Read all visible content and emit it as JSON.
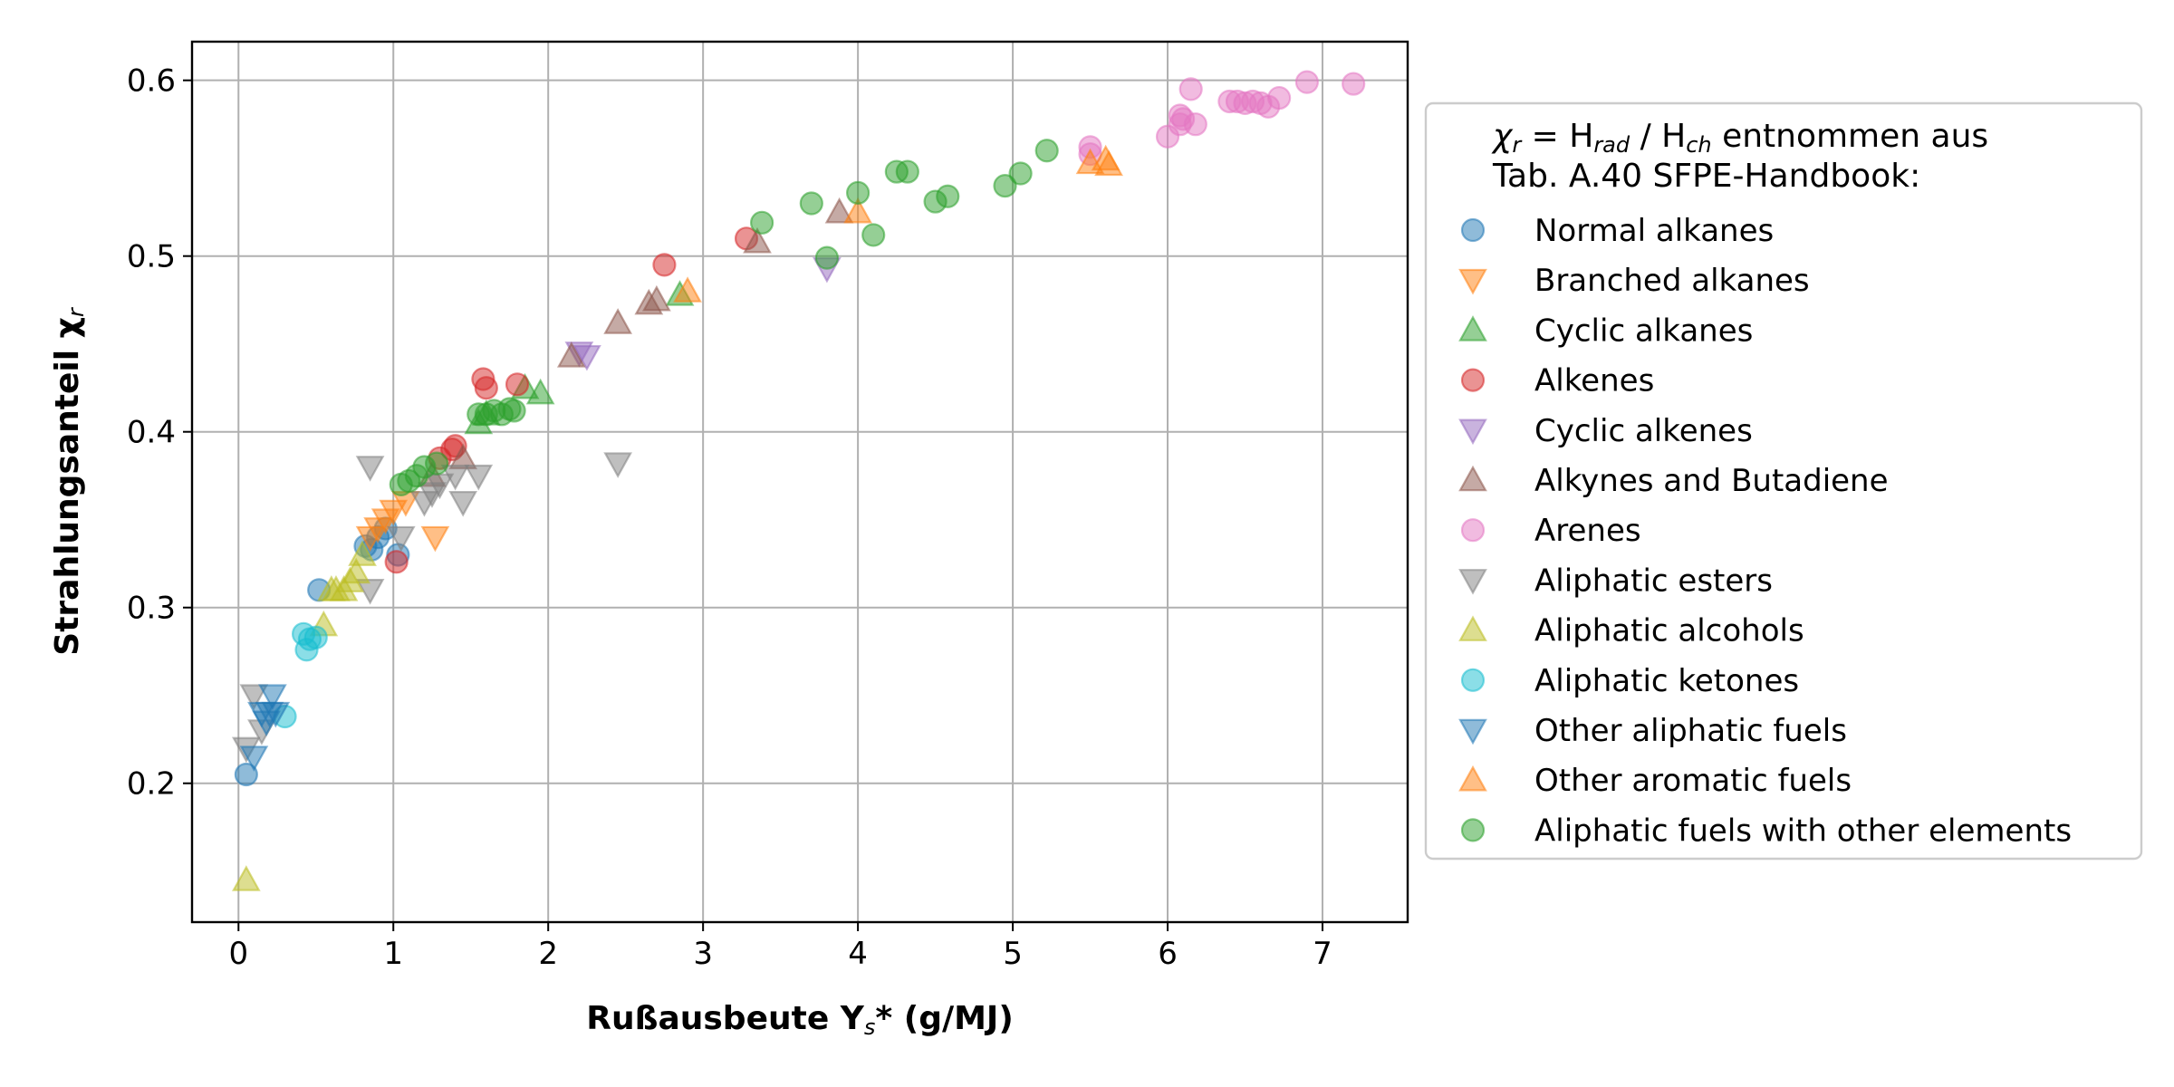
{
  "chart_data": {
    "type": "scatter",
    "xlabel": "Rußausbeute Y",
    "xlabel_sub": "s",
    "xlabel_suffix": "* (g/MJ)",
    "ylabel": "Strahlungsanteil χ",
    "ylabel_sub": "r",
    "xlim": [
      -0.3,
      7.55
    ],
    "ylim": [
      0.121,
      0.622
    ],
    "xticks": [
      0,
      1,
      2,
      3,
      4,
      5,
      6,
      7
    ],
    "yticks": [
      0.2,
      0.3,
      0.4,
      0.5,
      0.6
    ],
    "xtick_labels": [
      "0",
      "1",
      "2",
      "3",
      "4",
      "5",
      "6",
      "7"
    ],
    "ytick_labels": [
      "0.2",
      "0.3",
      "0.4",
      "0.5",
      "0.6"
    ],
    "grid": true,
    "legend": {
      "placement": "right-outside",
      "title_line1_sym": "χ",
      "title_line1_sub": "r",
      "title_line1_mid": " = H",
      "title_line1_sub2": "rad",
      "title_line1_mid2": " / H",
      "title_line1_sub3": "ch",
      "title_line1_tail": " entnommen aus",
      "title_line2": "Tab. A.40 SFPE-Handbook:"
    },
    "series": [
      {
        "name": "Normal alkanes",
        "marker": "circle",
        "color": "#1f77b4",
        "points": [
          [
            0.05,
            0.205
          ],
          [
            0.52,
            0.31
          ],
          [
            0.82,
            0.335
          ],
          [
            0.86,
            0.333
          ],
          [
            0.9,
            0.34
          ],
          [
            0.95,
            0.345
          ],
          [
            1.03,
            0.33
          ]
        ]
      },
      {
        "name": "Branched alkanes",
        "marker": "triangle-down",
        "color": "#ff7f0e",
        "points": [
          [
            0.85,
            0.34
          ],
          [
            0.9,
            0.345
          ],
          [
            0.95,
            0.35
          ],
          [
            1.0,
            0.355
          ],
          [
            1.08,
            0.36
          ],
          [
            1.27,
            0.34
          ]
        ]
      },
      {
        "name": "Cyclic alkanes",
        "marker": "triangle-up",
        "color": "#2ca02c",
        "points": [
          [
            1.55,
            0.405
          ],
          [
            1.6,
            0.41
          ],
          [
            1.85,
            0.425
          ],
          [
            1.95,
            0.422
          ],
          [
            2.85,
            0.478
          ]
        ]
      },
      {
        "name": "Alkenes",
        "marker": "circle",
        "color": "#d62728",
        "points": [
          [
            1.02,
            0.326
          ],
          [
            1.3,
            0.385
          ],
          [
            1.38,
            0.39
          ],
          [
            1.4,
            0.392
          ],
          [
            1.58,
            0.43
          ],
          [
            1.6,
            0.425
          ],
          [
            1.8,
            0.427
          ],
          [
            2.75,
            0.495
          ],
          [
            3.28,
            0.51
          ]
        ]
      },
      {
        "name": "Cyclic alkenes",
        "marker": "triangle-down",
        "color": "#9467bd",
        "points": [
          [
            2.2,
            0.445
          ],
          [
            2.25,
            0.443
          ],
          [
            3.8,
            0.493
          ]
        ]
      },
      {
        "name": "Alkynes and Butadiene",
        "marker": "triangle-up",
        "color": "#8c564b",
        "points": [
          [
            1.25,
            0.375
          ],
          [
            1.45,
            0.385
          ],
          [
            2.15,
            0.443
          ],
          [
            2.45,
            0.462
          ],
          [
            2.65,
            0.473
          ],
          [
            2.7,
            0.475
          ],
          [
            3.35,
            0.508
          ],
          [
            3.88,
            0.525
          ]
        ]
      },
      {
        "name": "Arenes",
        "marker": "circle",
        "color": "#e377c2",
        "points": [
          [
            5.5,
            0.562
          ],
          [
            5.5,
            0.558
          ],
          [
            6.0,
            0.568
          ],
          [
            6.08,
            0.58
          ],
          [
            6.08,
            0.575
          ],
          [
            6.1,
            0.578
          ],
          [
            6.15,
            0.595
          ],
          [
            6.18,
            0.575
          ],
          [
            6.4,
            0.588
          ],
          [
            6.45,
            0.588
          ],
          [
            6.5,
            0.587
          ],
          [
            6.55,
            0.588
          ],
          [
            6.6,
            0.587
          ],
          [
            6.65,
            0.585
          ],
          [
            6.72,
            0.59
          ],
          [
            6.9,
            0.599
          ],
          [
            7.2,
            0.598
          ]
        ]
      },
      {
        "name": "Aliphatic esters",
        "marker": "triangle-down",
        "color": "#7f7f7f",
        "points": [
          [
            0.05,
            0.22
          ],
          [
            0.1,
            0.25
          ],
          [
            0.15,
            0.23
          ],
          [
            0.85,
            0.31
          ],
          [
            0.85,
            0.38
          ],
          [
            1.05,
            0.34
          ],
          [
            1.2,
            0.36
          ],
          [
            1.25,
            0.365
          ],
          [
            1.3,
            0.37
          ],
          [
            1.4,
            0.375
          ],
          [
            1.45,
            0.36
          ],
          [
            1.55,
            0.375
          ],
          [
            2.45,
            0.382
          ]
        ]
      },
      {
        "name": "Aliphatic alcohols",
        "marker": "triangle-up",
        "color": "#bcbd22",
        "points": [
          [
            0.05,
            0.145
          ],
          [
            0.55,
            0.29
          ],
          [
            0.6,
            0.31
          ],
          [
            0.63,
            0.31
          ],
          [
            0.68,
            0.31
          ],
          [
            0.72,
            0.315
          ],
          [
            0.76,
            0.32
          ],
          [
            0.8,
            0.33
          ]
        ]
      },
      {
        "name": "Aliphatic ketones",
        "marker": "circle",
        "color": "#17becf",
        "points": [
          [
            0.3,
            0.238
          ],
          [
            0.42,
            0.285
          ],
          [
            0.44,
            0.276
          ],
          [
            0.46,
            0.282
          ],
          [
            0.5,
            0.283
          ]
        ]
      },
      {
        "name": "Other aliphatic fuels",
        "marker": "triangle-down",
        "color": "#1f77b4",
        "points": [
          [
            0.1,
            0.215
          ],
          [
            0.15,
            0.24
          ],
          [
            0.18,
            0.235
          ],
          [
            0.2,
            0.24
          ],
          [
            0.22,
            0.25
          ],
          [
            0.24,
            0.24
          ]
        ]
      },
      {
        "name": "Other aromatic fuels",
        "marker": "triangle-up",
        "color": "#ff7f0e",
        "points": [
          [
            2.9,
            0.48
          ],
          [
            4.0,
            0.525
          ],
          [
            5.5,
            0.553
          ],
          [
            5.6,
            0.555
          ],
          [
            5.62,
            0.552
          ]
        ]
      },
      {
        "name": "Aliphatic fuels with other elements",
        "marker": "circle",
        "color": "#2ca02c",
        "points": [
          [
            1.05,
            0.37
          ],
          [
            1.1,
            0.372
          ],
          [
            1.15,
            0.375
          ],
          [
            1.2,
            0.38
          ],
          [
            1.28,
            0.382
          ],
          [
            1.55,
            0.41
          ],
          [
            1.6,
            0.41
          ],
          [
            1.65,
            0.412
          ],
          [
            1.7,
            0.41
          ],
          [
            1.75,
            0.413
          ],
          [
            1.78,
            0.412
          ],
          [
            3.38,
            0.519
          ],
          [
            3.7,
            0.53
          ],
          [
            3.8,
            0.499
          ],
          [
            4.0,
            0.536
          ],
          [
            4.1,
            0.512
          ],
          [
            4.25,
            0.548
          ],
          [
            4.32,
            0.548
          ],
          [
            4.5,
            0.531
          ],
          [
            4.58,
            0.534
          ],
          [
            4.95,
            0.54
          ],
          [
            5.05,
            0.547
          ],
          [
            5.22,
            0.56
          ]
        ]
      }
    ]
  }
}
